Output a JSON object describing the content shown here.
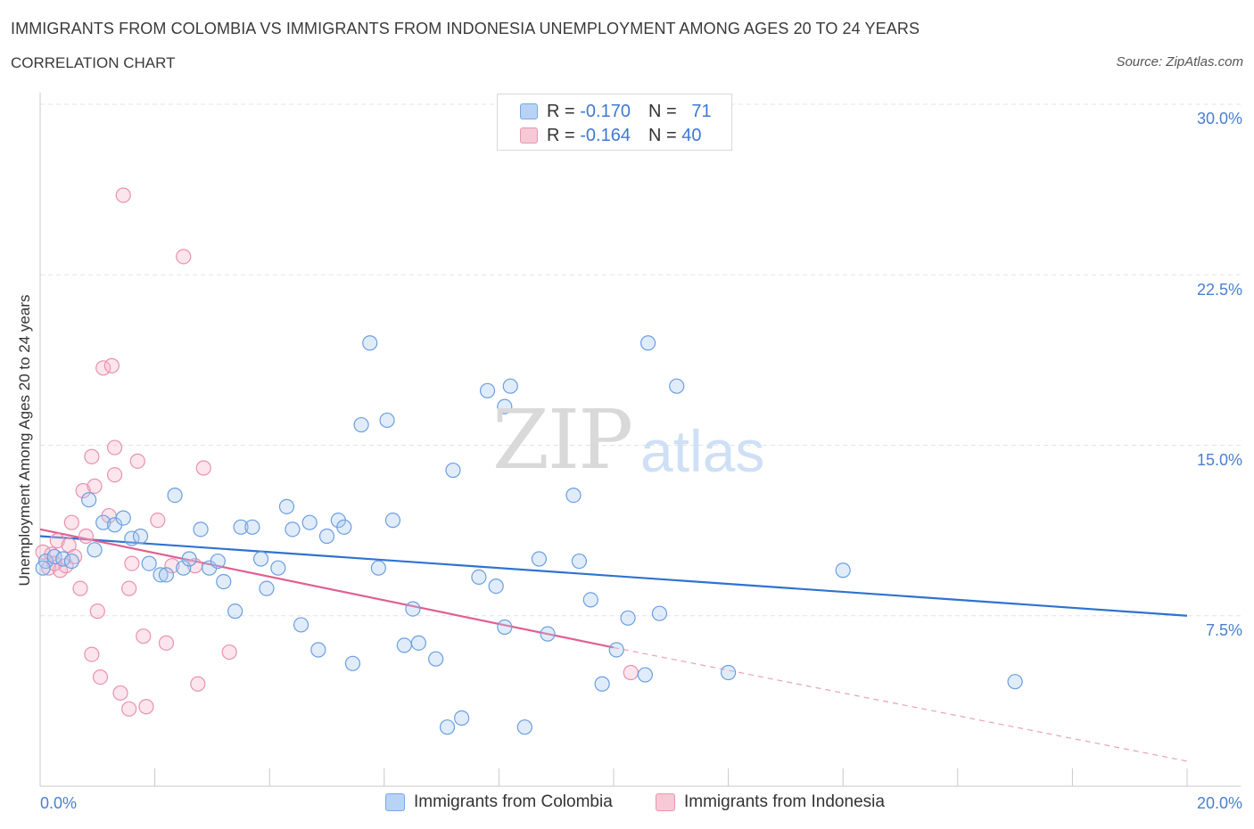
{
  "header": {
    "title": "IMMIGRANTS FROM COLOMBIA VS IMMIGRANTS FROM INDONESIA UNEMPLOYMENT AMONG AGES 20 TO 24 YEARS",
    "subtitle": "CORRELATION CHART",
    "source": "Source: ZipAtlas.com"
  },
  "watermark": {
    "zip": "ZIP",
    "atlas": "atlas"
  },
  "legend": {
    "rows": [
      {
        "r_label": "R =",
        "r_value": "-0.170",
        "n_label": "N =",
        "n_value": "71",
        "color": "#b8d3f5"
      },
      {
        "r_label": "R =",
        "r_value": "-0.164",
        "n_label": "N =",
        "n_value": "40",
        "color": "#f7c8d6"
      }
    ]
  },
  "colors": {
    "colombia": "#4a86d8",
    "indonesia": "#e26d98",
    "axis_text": "#4a7fd0",
    "grid": "#dde3ea"
  },
  "chart_data": {
    "type": "scatter",
    "title": "IMMIGRANTS FROM COLOMBIA VS IMMIGRANTS FROM INDONESIA UNEMPLOYMENT AMONG AGES 20 TO 24 YEARS",
    "subtitle": "CORRELATION CHART",
    "xlabel": "",
    "ylabel": "Unemployment Among Ages 20 to 24 years",
    "xlim": [
      0,
      20
    ],
    "ylim": [
      0,
      30
    ],
    "x_ticks": [
      "0.0%",
      "20.0%"
    ],
    "y_ticks": [
      "7.5%",
      "15.0%",
      "22.5%",
      "30.0%"
    ],
    "y_tick_values": [
      7.5,
      15.0,
      22.5,
      30.0
    ],
    "grid": true,
    "legend_position": "top-center",
    "series": [
      {
        "name": "Immigrants from Colombia",
        "color": "#4a86d8",
        "trend": {
          "x": [
            0,
            20
          ],
          "y": [
            11.0,
            7.5
          ]
        },
        "points": [
          [
            0.1,
            9.9
          ],
          [
            0.25,
            10.1
          ],
          [
            0.4,
            10.0
          ],
          [
            0.55,
            9.9
          ],
          [
            0.85,
            12.6
          ],
          [
            0.95,
            10.4
          ],
          [
            1.1,
            11.6
          ],
          [
            1.3,
            11.5
          ],
          [
            1.45,
            11.8
          ],
          [
            1.6,
            10.9
          ],
          [
            1.75,
            11.0
          ],
          [
            1.9,
            9.8
          ],
          [
            2.1,
            9.3
          ],
          [
            2.2,
            9.3
          ],
          [
            2.35,
            12.8
          ],
          [
            2.5,
            9.6
          ],
          [
            2.6,
            10.0
          ],
          [
            2.8,
            11.3
          ],
          [
            2.95,
            9.6
          ],
          [
            3.1,
            9.9
          ],
          [
            3.2,
            9.0
          ],
          [
            3.4,
            7.7
          ],
          [
            3.5,
            11.4
          ],
          [
            3.7,
            11.4
          ],
          [
            3.85,
            10.0
          ],
          [
            3.95,
            8.7
          ],
          [
            4.15,
            9.6
          ],
          [
            4.3,
            12.3
          ],
          [
            4.4,
            11.3
          ],
          [
            4.55,
            7.1
          ],
          [
            4.7,
            11.6
          ],
          [
            4.85,
            6.0
          ],
          [
            5.0,
            11.0
          ],
          [
            5.2,
            11.7
          ],
          [
            5.3,
            11.4
          ],
          [
            5.45,
            5.4
          ],
          [
            5.6,
            15.9
          ],
          [
            5.75,
            19.5
          ],
          [
            5.9,
            9.6
          ],
          [
            6.05,
            16.1
          ],
          [
            6.15,
            11.7
          ],
          [
            6.35,
            6.2
          ],
          [
            6.5,
            7.8
          ],
          [
            6.6,
            6.3
          ],
          [
            6.9,
            5.6
          ],
          [
            7.1,
            2.6
          ],
          [
            7.2,
            13.9
          ],
          [
            7.35,
            3.0
          ],
          [
            7.65,
            9.2
          ],
          [
            7.8,
            17.4
          ],
          [
            7.95,
            8.8
          ],
          [
            8.1,
            7.0
          ],
          [
            8.1,
            16.7
          ],
          [
            8.2,
            17.6
          ],
          [
            8.45,
            2.6
          ],
          [
            8.7,
            10.0
          ],
          [
            8.85,
            6.7
          ],
          [
            9.3,
            12.8
          ],
          [
            9.4,
            9.9
          ],
          [
            9.6,
            8.2
          ],
          [
            9.8,
            4.5
          ],
          [
            10.05,
            6.0
          ],
          [
            10.25,
            7.4
          ],
          [
            10.55,
            4.9
          ],
          [
            10.6,
            19.5
          ],
          [
            10.8,
            7.6
          ],
          [
            11.1,
            17.6
          ],
          [
            12.0,
            5.0
          ],
          [
            14.0,
            9.5
          ],
          [
            17.0,
            4.6
          ],
          [
            0.05,
            9.6
          ]
        ]
      },
      {
        "name": "Immigrants from Indonesia",
        "color": "#e26d98",
        "trend": {
          "x": [
            0,
            10
          ],
          "y": [
            11.3,
            6.1
          ]
        },
        "trend_dashed": {
          "x": [
            10,
            20
          ],
          "y": [
            6.1,
            1.1
          ]
        },
        "points": [
          [
            0.05,
            10.3
          ],
          [
            0.15,
            9.6
          ],
          [
            0.2,
            10.2
          ],
          [
            0.3,
            10.8
          ],
          [
            0.35,
            9.5
          ],
          [
            0.45,
            9.7
          ],
          [
            0.5,
            10.6
          ],
          [
            0.55,
            11.6
          ],
          [
            0.6,
            10.1
          ],
          [
            0.7,
            8.7
          ],
          [
            0.75,
            13.0
          ],
          [
            0.8,
            11.0
          ],
          [
            0.9,
            14.5
          ],
          [
            0.95,
            13.2
          ],
          [
            0.9,
            5.8
          ],
          [
            1.0,
            7.7
          ],
          [
            1.05,
            4.8
          ],
          [
            1.1,
            18.4
          ],
          [
            1.2,
            11.9
          ],
          [
            1.25,
            18.5
          ],
          [
            1.3,
            14.9
          ],
          [
            1.3,
            13.7
          ],
          [
            1.4,
            4.1
          ],
          [
            1.45,
            26.0
          ],
          [
            1.55,
            3.4
          ],
          [
            1.55,
            8.7
          ],
          [
            1.6,
            9.8
          ],
          [
            1.7,
            14.3
          ],
          [
            1.8,
            6.6
          ],
          [
            1.85,
            3.5
          ],
          [
            2.05,
            11.7
          ],
          [
            2.2,
            6.3
          ],
          [
            2.3,
            9.7
          ],
          [
            2.5,
            23.3
          ],
          [
            2.7,
            9.7
          ],
          [
            2.75,
            4.5
          ],
          [
            2.85,
            14.0
          ],
          [
            3.3,
            5.9
          ],
          [
            10.3,
            5.0
          ],
          [
            0.25,
            9.8
          ]
        ]
      }
    ]
  },
  "axes": {
    "ylabel": "Unemployment Among Ages 20 to 24 years",
    "y_ticks": [
      "30.0%",
      "22.5%",
      "15.0%",
      "7.5%"
    ],
    "x_ticks": [
      "0.0%",
      "20.0%"
    ]
  },
  "bottom_legend": {
    "items": [
      {
        "label": "Immigrants from Colombia"
      },
      {
        "label": "Immigrants from Indonesia"
      }
    ]
  }
}
